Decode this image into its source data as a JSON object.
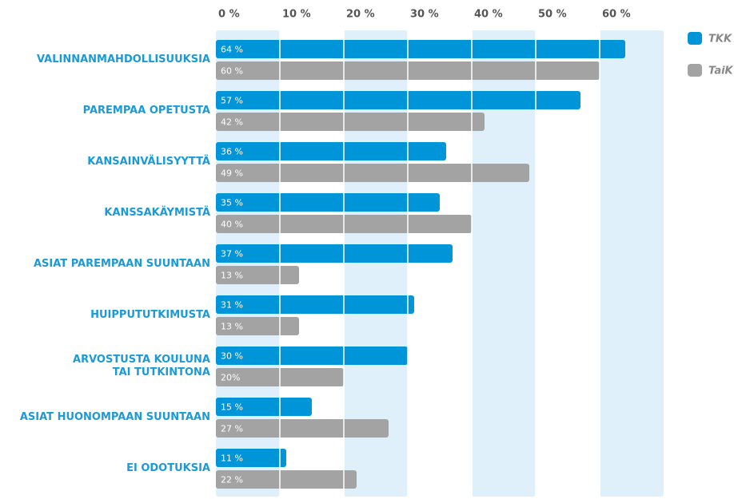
{
  "chart_data": {
    "type": "barh",
    "categories": [
      "VALINNANMAHDOLLISUUKSIA",
      "PAREMPAA OPETUSTA",
      "KANSAINVÄLISYYTTÄ",
      "KANSSAKÄYMISTÄ",
      "ASIAT PAREMPAAN SUUNTAAN",
      "HUIPPUTUTKIMUSTA",
      "ARVOSTUSTA KOULUNA\nTAI TUTKINTONA",
      "ASIAT HUONOMPAAN SUUNTAAN",
      "EI ODOTUKSIA"
    ],
    "series": [
      {
        "name": "TKK",
        "color": "#0095d9",
        "values": [
          64,
          57,
          36,
          35,
          37,
          31,
          30,
          15,
          11
        ],
        "value_labels": [
          "64 %",
          "57 %",
          "36 %",
          "35 %",
          "37 %",
          "31 %",
          "30 %",
          "15 %",
          "11 %"
        ]
      },
      {
        "name": "TaiK",
        "color": "#a3a3a3",
        "values": [
          60,
          42,
          49,
          40,
          13,
          13,
          20,
          27,
          22
        ],
        "value_labels": [
          "60 %",
          "42 %",
          "49 %",
          "40 %",
          "13 %",
          "13 %",
          "20%",
          "27 %",
          "22 %"
        ]
      }
    ],
    "xlim": [
      0,
      70
    ],
    "xticks": [
      {
        "value": 0,
        "label": "0 %"
      },
      {
        "value": 10,
        "label": "10 %"
      },
      {
        "value": 20,
        "label": "20 %"
      },
      {
        "value": 30,
        "label": "30 %"
      },
      {
        "value": 40,
        "label": "40 %"
      },
      {
        "value": 50,
        "label": "50 %"
      },
      {
        "value": 60,
        "label": "60 %"
      }
    ],
    "band_color": "#dff0fa",
    "legend": "top-right"
  }
}
